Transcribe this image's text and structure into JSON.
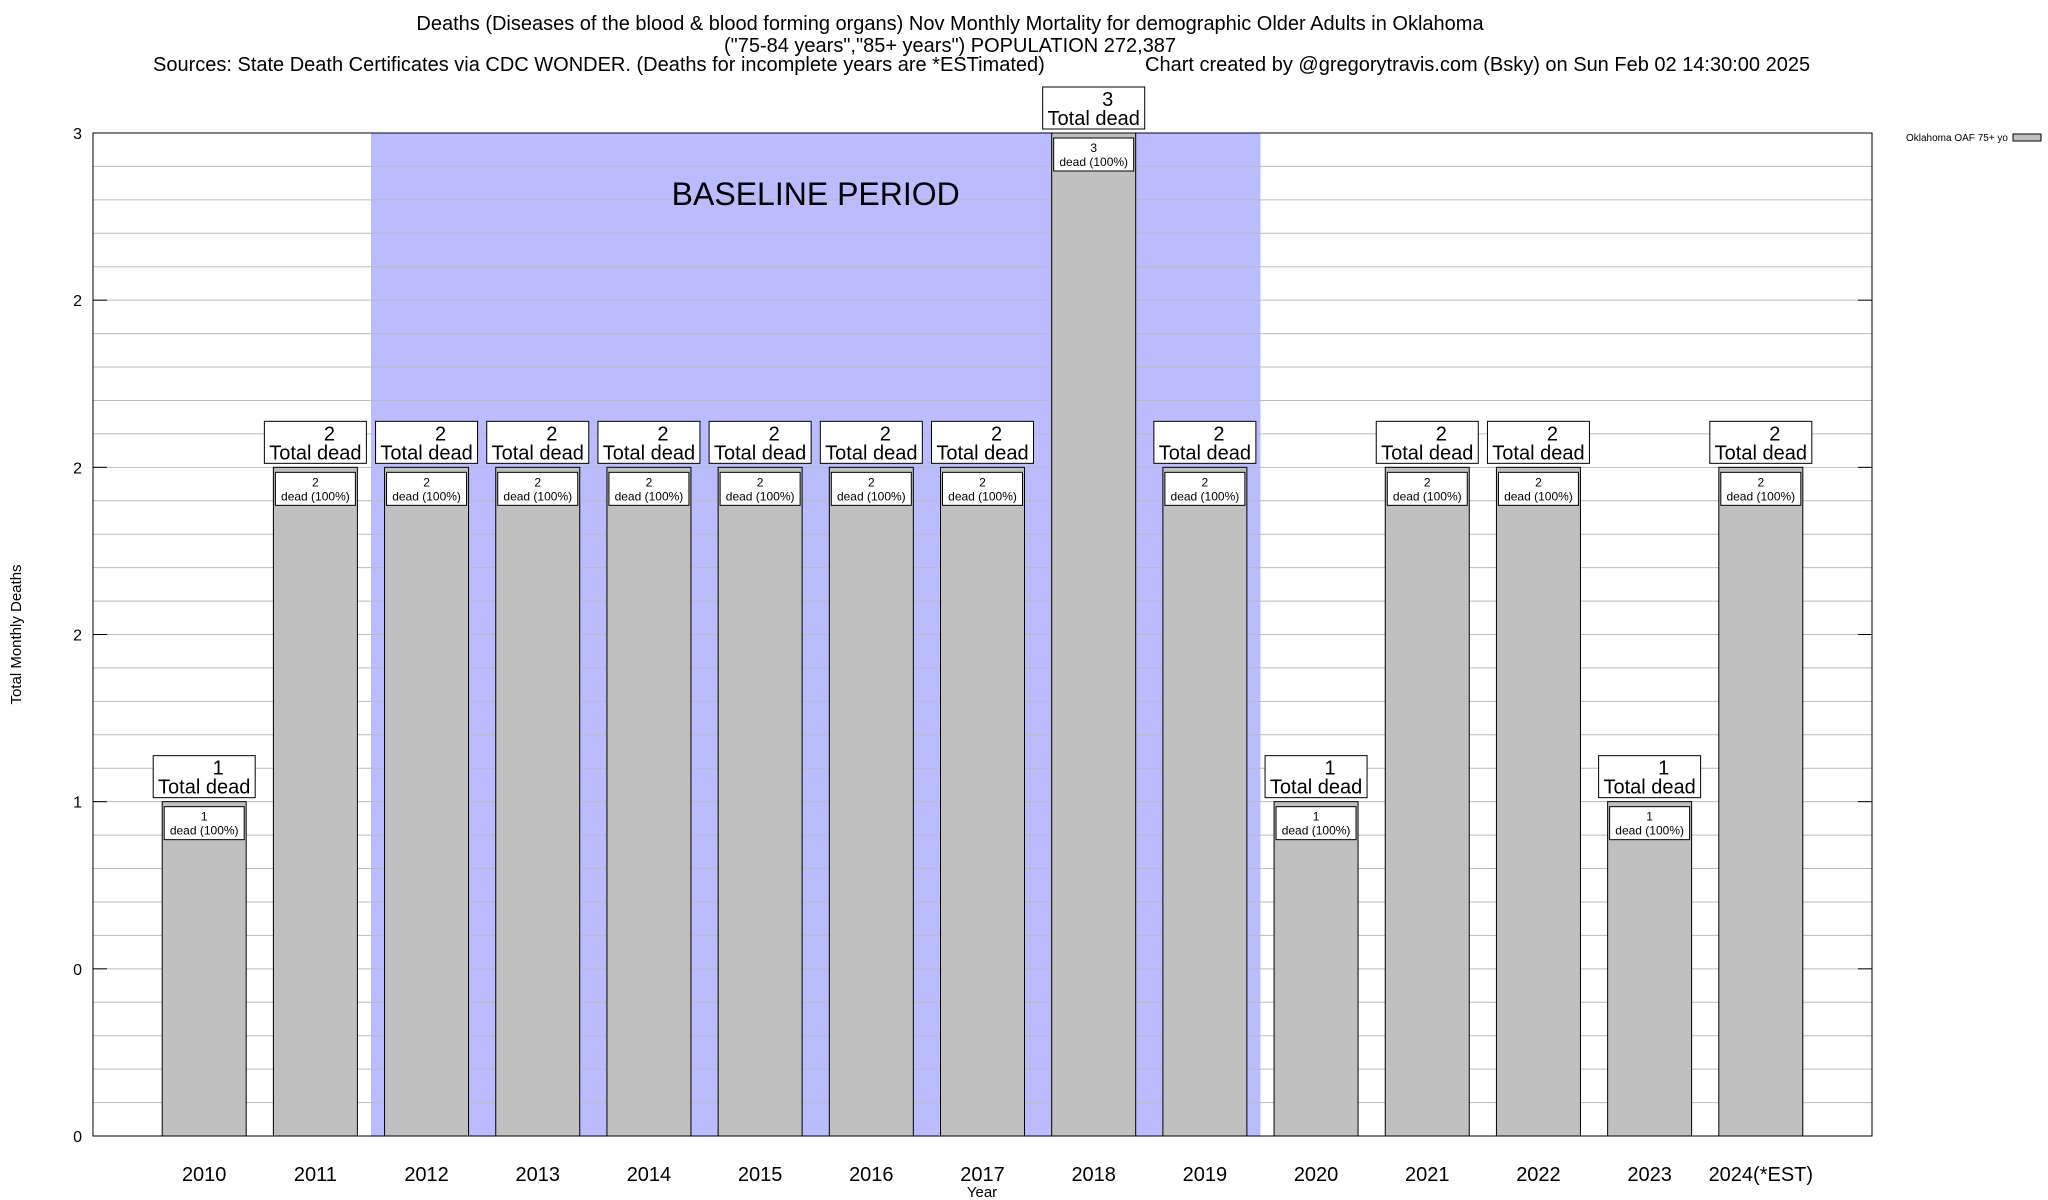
{
  "chart_data": {
    "type": "bar",
    "title": "Deaths (Diseases of the blood & blood forming organs) Nov Monthly Mortality for demographic Older Adults in Oklahoma",
    "subtitle": "(\"75-84 years\",\"85+ years\") POPULATION 272,387",
    "sources": "Sources: State Death Certificates via CDC WONDER. (Deaths for incomplete years are *ESTimated)",
    "credit": "Chart created by @gregorytravis.com (Bsky) on Sun Feb 02 14:30:00 2025",
    "xlabel": "Year",
    "ylabel": "Total Monthly Deaths",
    "ylim": [
      0,
      3
    ],
    "y_tick_labels": [
      "0",
      "0",
      "1",
      "2",
      "2",
      "2",
      "3"
    ],
    "grid": true,
    "legend": {
      "label": "Oklahoma OAF 75+ yo",
      "placement": "top-right",
      "color": "#c0c0c0"
    },
    "baseline_annotation": {
      "label": "BASELINE PERIOD",
      "from": "2012",
      "to": "2019",
      "color": "#bbbbff"
    },
    "categories": [
      "2010",
      "2011",
      "2012",
      "2013",
      "2014",
      "2015",
      "2016",
      "2017",
      "2018",
      "2019",
      "2020",
      "2021",
      "2022",
      "2023",
      "2024(*EST)"
    ],
    "series": [
      {
        "name": "Oklahoma OAF 75+ yo",
        "color": "#c0c0c0",
        "values": [
          1,
          2,
          2,
          2,
          2,
          2,
          2,
          2,
          3,
          2,
          1,
          2,
          2,
          1,
          2
        ],
        "inner_labels": [
          [
            "1",
            "dead (100%)"
          ],
          [
            "2",
            "dead (100%)"
          ],
          [
            "2",
            "dead (100%)"
          ],
          [
            "2",
            "dead (100%)"
          ],
          [
            "2",
            "dead (100%)"
          ],
          [
            "2",
            "dead (100%)"
          ],
          [
            "2",
            "dead (100%)"
          ],
          [
            "2",
            "dead (100%)"
          ],
          [
            "3",
            "dead (100%)"
          ],
          [
            "2",
            "dead (100%)"
          ],
          [
            "1",
            "dead (100%)"
          ],
          [
            "2",
            "dead (100%)"
          ],
          [
            "2",
            "dead (100%)"
          ],
          [
            "1",
            "dead (100%)"
          ],
          [
            "2",
            "dead (100%)"
          ]
        ],
        "top_labels": [
          [
            "1",
            "Total dead"
          ],
          [
            "2",
            "Total dead"
          ],
          [
            "2",
            "Total dead"
          ],
          [
            "2",
            "Total dead"
          ],
          [
            "2",
            "Total dead"
          ],
          [
            "2",
            "Total dead"
          ],
          [
            "2",
            "Total dead"
          ],
          [
            "2",
            "Total dead"
          ],
          [
            "3",
            "Total dead"
          ],
          [
            "2",
            "Total dead"
          ],
          [
            "1",
            "Total dead"
          ],
          [
            "2",
            "Total dead"
          ],
          [
            "2",
            "Total dead"
          ],
          [
            "1",
            "Total dead"
          ],
          [
            "2",
            "Total dead"
          ]
        ]
      }
    ]
  }
}
